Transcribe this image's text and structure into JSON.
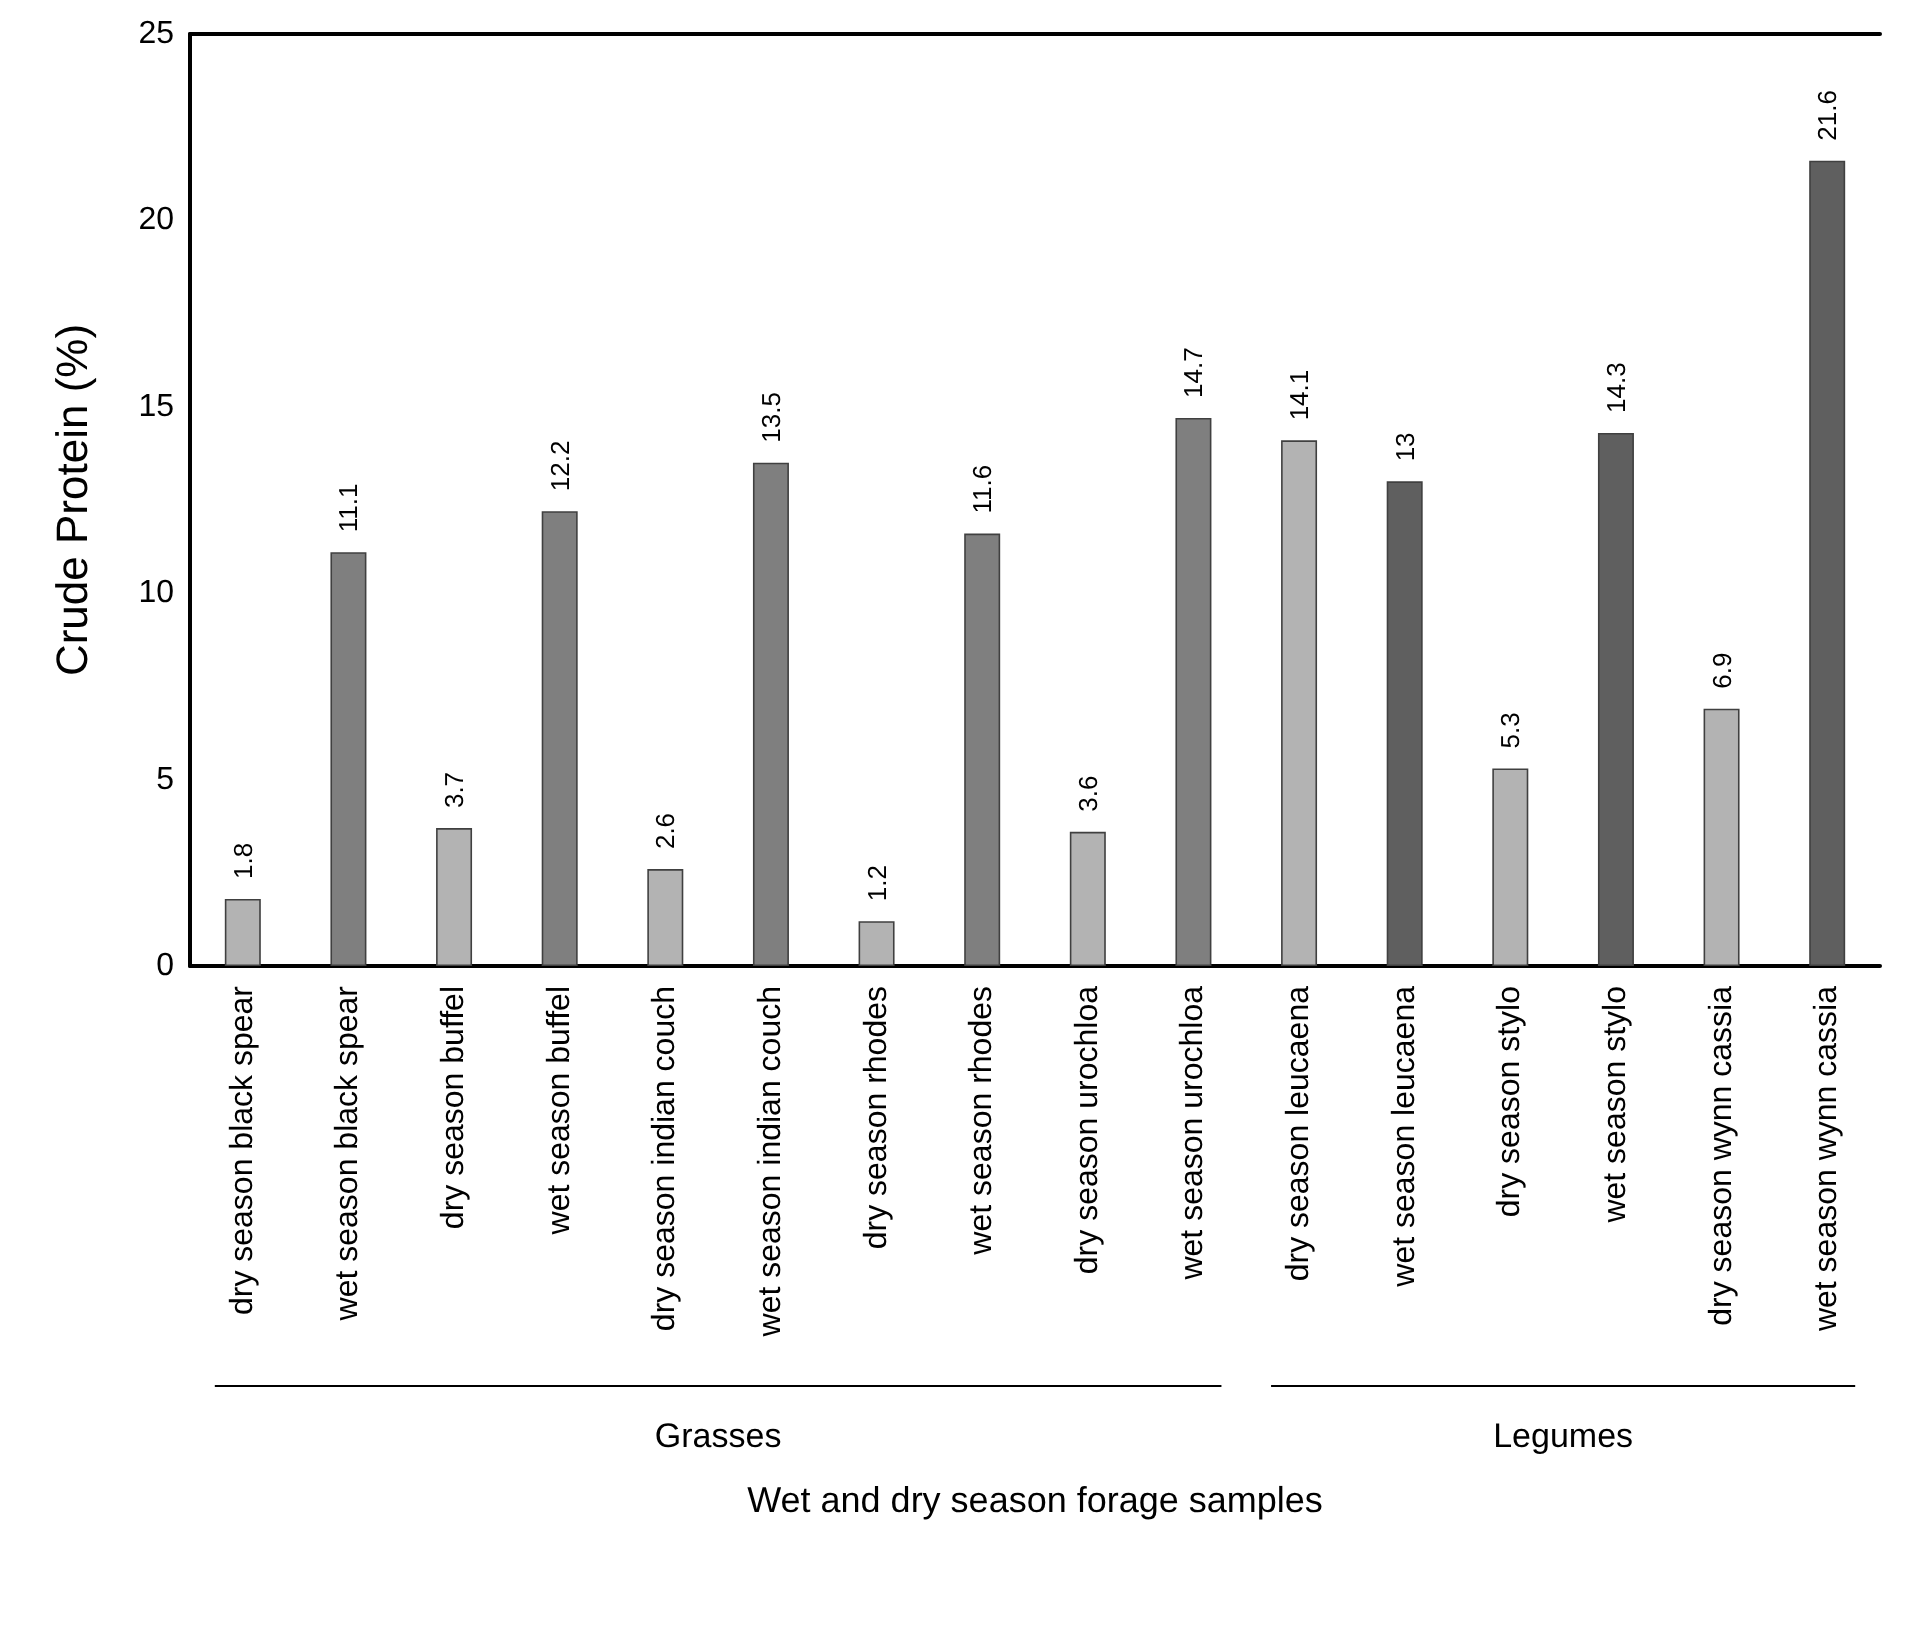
{
  "chart_data": {
    "type": "bar",
    "xlabel": "Wet and dry season forage samples",
    "ylabel": "Crude Protein (%)",
    "categories": [
      "dry season black spear",
      "wet season black spear",
      "dry season buffel",
      "wet season buffel",
      "dry season indian couch",
      "wet season indian couch",
      "dry season rhodes",
      "wet season rhodes",
      "dry season urochloa",
      "wet season urochloa",
      "dry season leucaena",
      "wet season leucaena",
      "dry season stylo",
      "wet season stylo",
      "dry season wynn cassia",
      "wet season wynn cassia"
    ],
    "values": [
      1.8,
      11.1,
      3.7,
      12.2,
      2.6,
      13.5,
      1.2,
      11.6,
      3.6,
      14.7,
      14.1,
      13,
      5.3,
      14.3,
      6.9,
      21.6
    ],
    "colors": [
      "#b3b3b3",
      "#7f7f7f",
      "#b3b3b3",
      "#7f7f7f",
      "#b3b3b3",
      "#7f7f7f",
      "#b3b3b3",
      "#7f7f7f",
      "#b3b3b3",
      "#7f7f7f",
      "#b3b3b3",
      "#5f5f5f",
      "#b3b3b3",
      "#5f5f5f",
      "#b3b3b3",
      "#5f5f5f"
    ],
    "ylim": [
      0,
      25
    ],
    "yticks": [
      0,
      5,
      10,
      15,
      20,
      25
    ],
    "grid": false,
    "data_labels": true,
    "annotations": [
      "Grasses",
      "Legumes"
    ]
  }
}
